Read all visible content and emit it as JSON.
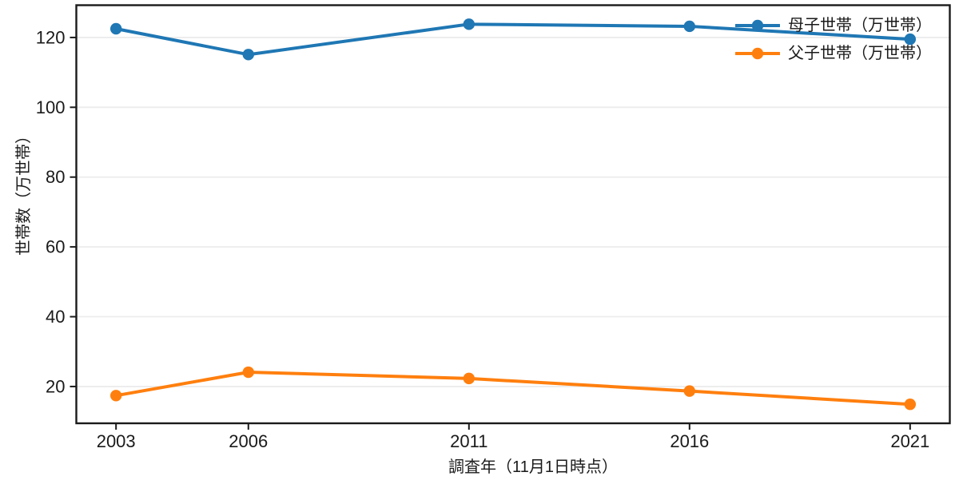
{
  "chart_data": {
    "type": "line",
    "title": "",
    "xlabel": "調査年（11月1日時点）",
    "ylabel": "世帯数（万世帯）",
    "x": [
      2003,
      2006,
      2011,
      2016,
      2021
    ],
    "x_tick_labels": [
      "2003",
      "2006",
      "2011",
      "2016",
      "2021"
    ],
    "y_ticks": [
      20,
      40,
      60,
      80,
      100,
      120
    ],
    "y_tick_labels": [
      "20",
      "40",
      "60",
      "80",
      "100",
      "120"
    ],
    "xlim": [
      2002.1,
      2021.9
    ],
    "ylim": [
      9.46,
      129.25
    ],
    "grid": {
      "horizontal": true,
      "vertical": false
    },
    "legend": {
      "position": "upper-right",
      "frame": false
    },
    "series": [
      {
        "name": "母子世帯（万世帯）",
        "color": "#1f77b4",
        "values": [
          122.5,
          115.1,
          123.8,
          123.2,
          119.5
        ]
      },
      {
        "name": "父子世帯（万世帯）",
        "color": "#ff7f0e",
        "values": [
          17.4,
          24.1,
          22.3,
          18.7,
          14.9
        ]
      }
    ]
  }
}
